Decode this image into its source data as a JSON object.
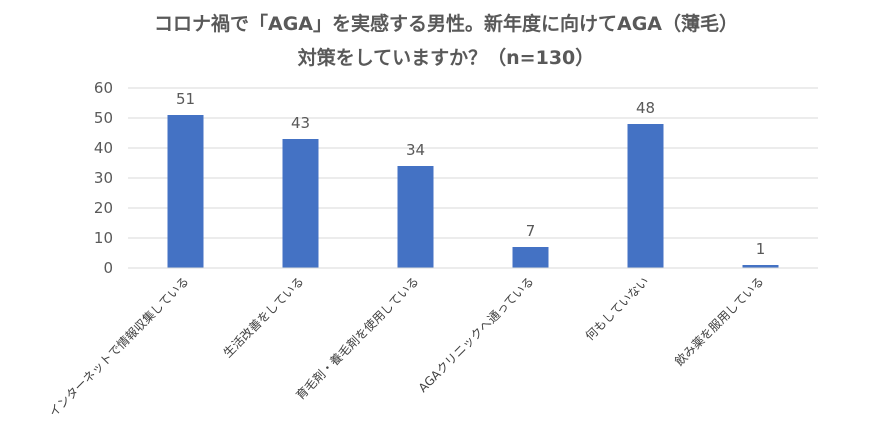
{
  "chart_data": {
    "type": "bar",
    "title_lines": [
      "コロナ禍で「AGA」を実感する男性。新年度に向けてAGA（薄毛）",
      "対策をしていますか？（n=130）"
    ],
    "categories": [
      "インターネットで情報収集している",
      "生活改善をしている",
      "育毛剤・養毛剤を使用している",
      "AGAクリニックへ通っている",
      "何もしていない",
      "飲み薬を服用している"
    ],
    "values": [
      51,
      43,
      34,
      7,
      48,
      1
    ],
    "ylim": [
      0,
      60
    ],
    "yticks": [
      0,
      10,
      20,
      30,
      40,
      50,
      60
    ],
    "grid": true,
    "legend": "none",
    "bar_color": "#4472C4",
    "grid_color": "#d9d9d9",
    "xlabel": "",
    "ylabel": ""
  }
}
